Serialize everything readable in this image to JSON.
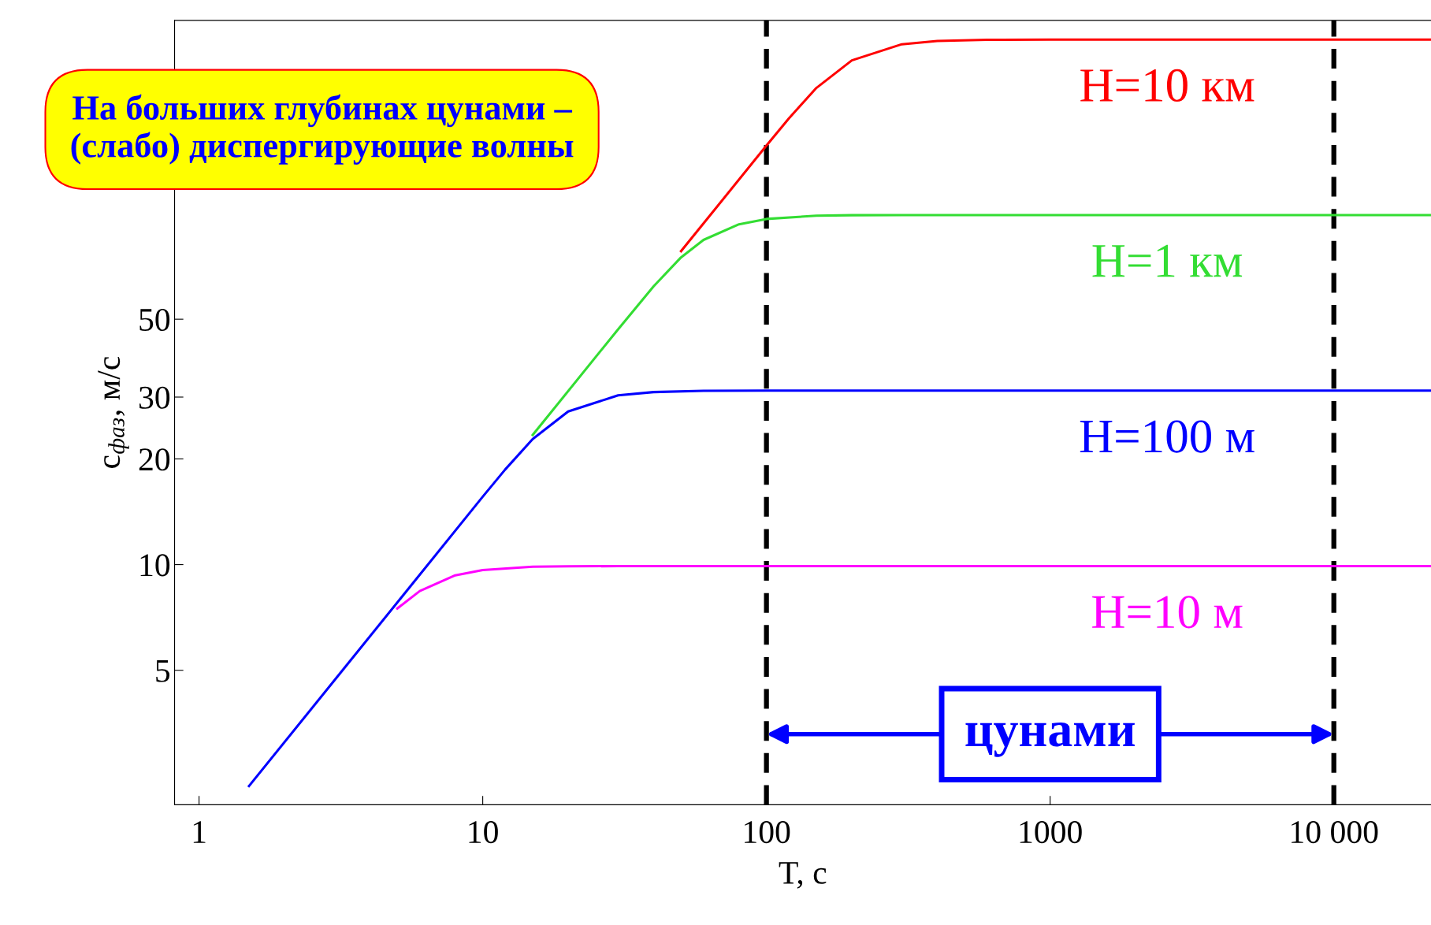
{
  "chart_data": {
    "type": "line",
    "xlabel": "T, с",
    "ylabel": "c$_{фаз}$, м/с",
    "log": "xy",
    "xlim": [
      0.82,
      22000
    ],
    "ylim": [
      2.07,
      355
    ],
    "xticks": [
      1,
      10,
      100,
      1000,
      {
        "value": 10000,
        "label": "10 000"
      }
    ],
    "yticks": [
      5,
      10,
      20,
      30,
      50
    ],
    "grid": false,
    "legend": false,
    "marker": "none",
    "line_style": "solid",
    "series": [
      {
        "name": "H=10 км",
        "color": "#ff0000",
        "x": [
          50,
          100,
          120,
          150,
          200,
          300,
          400,
          600,
          1000,
          22000
        ],
        "values": [
          78.1,
          156.1,
          186.7,
          227.9,
          273,
          303.5,
          310,
          312.5,
          313,
          313
        ]
      },
      {
        "name": "H=1 км",
        "color": "#33dd33",
        "x": [
          15,
          30,
          40,
          50,
          60,
          80,
          100,
          150,
          200,
          300,
          22000
        ],
        "values": [
          23.4,
          46.8,
          62.0,
          75.0,
          84.1,
          93.2,
          96.5,
          98.6,
          98.9,
          99.0,
          99.0
        ]
      },
      {
        "name": "H=10 м",
        "color": "#ff00ff",
        "x": [
          5,
          6,
          8,
          10,
          15,
          20,
          30,
          22000
        ],
        "values": [
          7.5,
          8.41,
          9.32,
          9.65,
          9.86,
          9.89,
          9.9,
          9.9
        ]
      },
      {
        "name": "H=100 м",
        "color": "#0000ff",
        "x": [
          1.5,
          3,
          10,
          12,
          15,
          20,
          30,
          40,
          60,
          100,
          22000
        ],
        "values": [
          2.34,
          4.68,
          15.61,
          18.66,
          22.78,
          27.3,
          30.35,
          31.0,
          31.25,
          31.3,
          31.3
        ]
      }
    ],
    "ref_lines": [
      {
        "axis": "x",
        "value": 100,
        "color": "#000000",
        "line_style": "dashed"
      },
      {
        "axis": "x",
        "value": 10000,
        "color": "#000000",
        "line_style": "dashed"
      }
    ],
    "annotations": [
      "цунами",
      "На больших глубинах цунами – (слабо) диспергирующие волны"
    ]
  }
}
